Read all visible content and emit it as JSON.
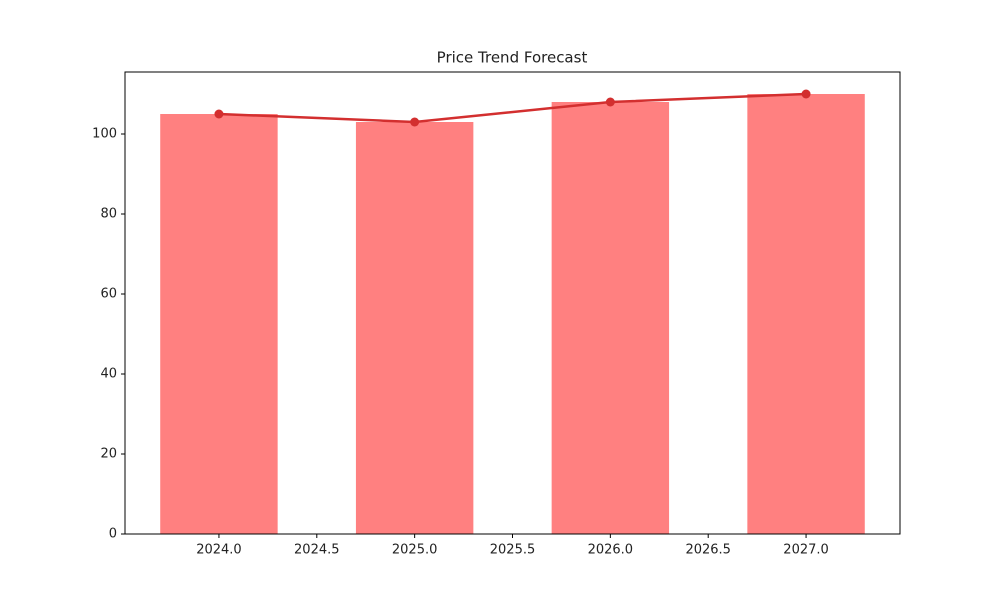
{
  "chart_data": {
    "type": "bar",
    "title": "Price Trend Forecast",
    "x": [
      2024,
      2025,
      2026,
      2027
    ],
    "series": [
      {
        "type": "bar",
        "color": "#ff8080",
        "values": [
          105,
          103,
          108,
          110
        ]
      },
      {
        "type": "line",
        "color": "#d32f2f",
        "values": [
          105,
          103,
          108,
          110
        ]
      }
    ],
    "xlim": [
      2023.52,
      2027.48
    ],
    "xticks": [
      {
        "value": 2024,
        "label": "2024.0"
      },
      2024.5,
      {
        "value": 2025,
        "label": "2025.0"
      },
      2025.5,
      {
        "value": 2026,
        "label": "2026.0"
      },
      2026.5,
      {
        "value": 2027,
        "label": "2027.0"
      }
    ],
    "ylim": [
      0,
      115.5
    ],
    "yticks": [
      0,
      20,
      40,
      60,
      80,
      100
    ],
    "grid": false
  }
}
